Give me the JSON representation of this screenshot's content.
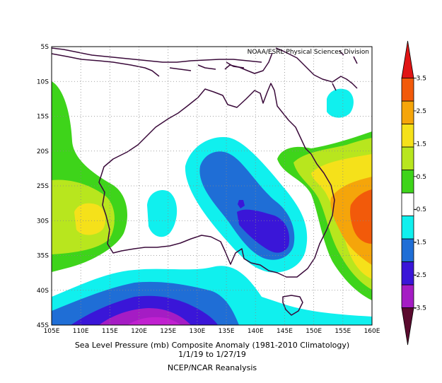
{
  "credit": "NOAA/ESRL Physical Sciences Division",
  "caption": {
    "line1": "Sea Level Pressure (mb) Composite Anomaly (1981-2010 Climatology)",
    "line2": "1/1/19  to 1/27/19",
    "line3": "NCEP/NCAR Reanalysis"
  },
  "axes": {
    "lat_labels": [
      "5S",
      "10S",
      "15S",
      "20S",
      "25S",
      "30S",
      "35S",
      "40S",
      "45S"
    ],
    "lon_labels": [
      "105E",
      "110E",
      "115E",
      "120E",
      "125E",
      "130E",
      "135E",
      "140E",
      "145E",
      "150E",
      "155E",
      "160E"
    ]
  },
  "colorbar": {
    "labels": [
      "3.5",
      "2.5",
      "1.5",
      "0.5",
      "-0.5",
      "-1.5",
      "-2.5",
      "-3.5"
    ],
    "colors": [
      "#5a0a2e",
      "#a51cc4",
      "#3a16d8",
      "#1f6ed6",
      "#10f0ee",
      "#ffffff",
      "#3ed41a",
      "#b8e61e",
      "#f5e11a",
      "#f5a50a",
      "#f25a0a",
      "#e01414"
    ]
  },
  "colors": {
    "ocean": "#ffffff",
    "coast": "#3a0a3a",
    "grid": "#888888"
  }
}
